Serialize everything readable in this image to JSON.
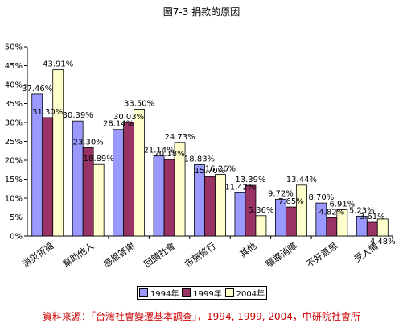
{
  "chart_data": {
    "type": "bar",
    "title": "圖7-3 捐款的原因",
    "categories": [
      "消災祈福",
      "幫助他人",
      "感恩答謝",
      "回饋社會",
      "布施修行",
      "其他",
      "贖罪消障",
      "不好意思",
      "受人情"
    ],
    "series": [
      {
        "name": "1994年",
        "color": "#9999ff",
        "values": [
          37.46,
          30.39,
          28.14,
          21.14,
          18.83,
          11.42,
          9.72,
          8.7,
          5.23
        ]
      },
      {
        "name": "1999年",
        "color": "#993366",
        "values": [
          31.3,
          23.3,
          30.03,
          20.18,
          15.7,
          13.39,
          7.65,
          4.82,
          3.61
        ]
      },
      {
        "name": "2004年",
        "color": "#ffffcc",
        "values": [
          43.91,
          18.89,
          33.5,
          24.73,
          16.26,
          5.36,
          13.44,
          6.91,
          4.48
        ]
      }
    ],
    "data_labels": [
      [
        "37.46%",
        "30.39%",
        "28.14%",
        "21.14%",
        "18.83%",
        "11.42%",
        "9.72%",
        "8.70%",
        "5.23%"
      ],
      [
        "31.30%",
        "23.30%",
        "30.03%",
        "20.18%",
        "15.70%",
        "13.39%",
        "7.65%",
        "4.82%",
        "3.61%"
      ],
      [
        "43.91%",
        "18.89%",
        "33.50%",
        "24.73%",
        "16.26%",
        "5.36%",
        "13.44%",
        "6.91%",
        "4.48%"
      ]
    ],
    "ylim": [
      0,
      50
    ],
    "yticks": [
      "0%",
      "5%",
      "10%",
      "15%",
      "20%",
      "25%",
      "30%",
      "35%",
      "40%",
      "45%",
      "50%"
    ],
    "grid": false,
    "legend": "bottom"
  },
  "source_note": "資料來源：「台灣社會變遷基本調查」，1994, 1999, 2004，中研院社會所"
}
